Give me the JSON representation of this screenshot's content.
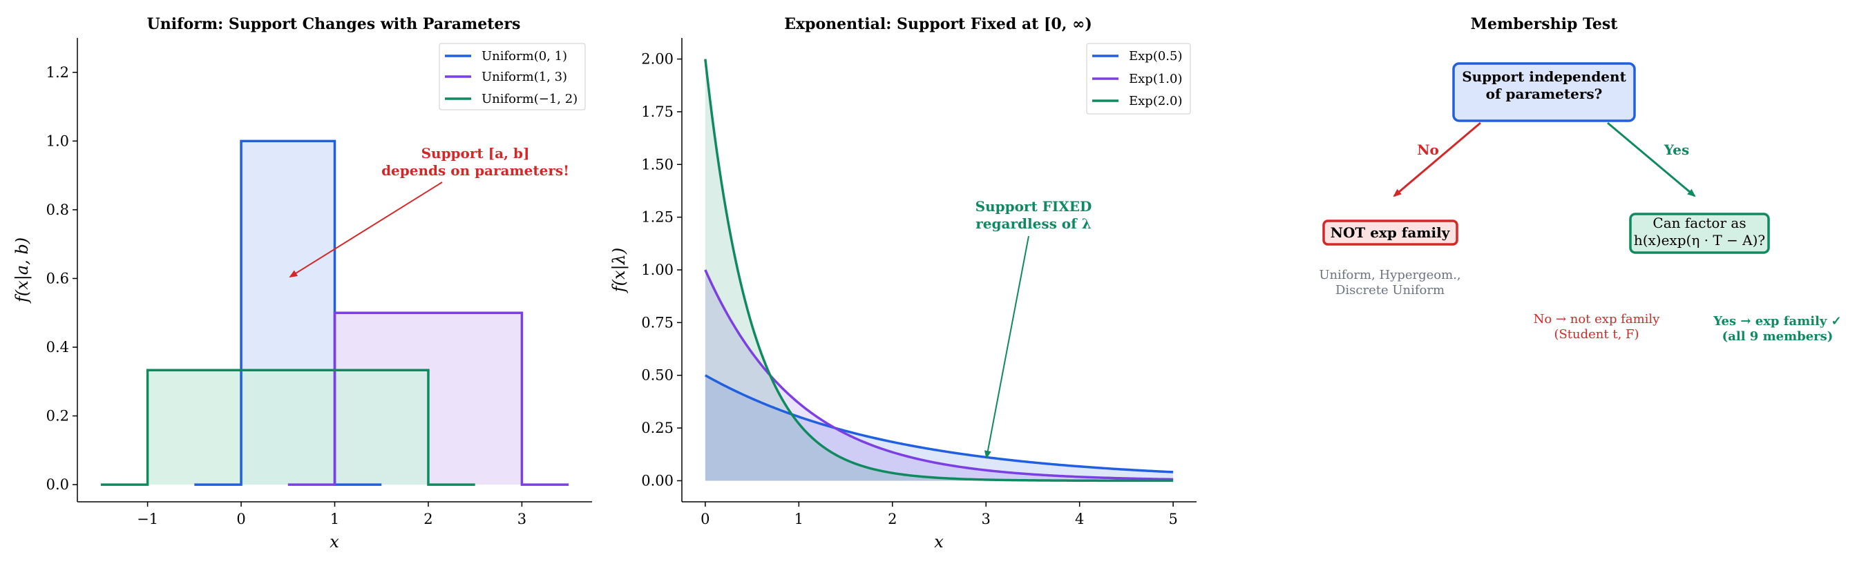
{
  "colors": {
    "blue": "#1f5fe0",
    "purple": "#7b3fe4",
    "green": "#0f8a5f",
    "red": "#d62728",
    "gray": "#6b7280",
    "blue_fill": "#dbe5fb",
    "purple_fill": "#e9def9",
    "green_fill": "#d4efe4",
    "red_fill": "#fde2e2"
  },
  "chart_data": [
    {
      "type": "line",
      "title": "Uniform: Support Changes with Parameters",
      "xlabel": "x",
      "ylabel": "f(x|a, b)",
      "xlim": [
        -1.75,
        3.75
      ],
      "ylim": [
        -0.05,
        1.3
      ],
      "xticks": [
        -1,
        0,
        1,
        2,
        3
      ],
      "yticks": [
        0.0,
        0.2,
        0.4,
        0.6,
        0.8,
        1.0,
        1.2
      ],
      "xtick_labels": [
        "−1",
        "0",
        "1",
        "2",
        "3"
      ],
      "ytick_labels": [
        "0.0",
        "0.2",
        "0.4",
        "0.6",
        "0.8",
        "1.0",
        "1.2"
      ],
      "legend_position": "top-right",
      "series": [
        {
          "name": "Uniform(0, 1)",
          "color_key": "blue",
          "x": [
            -0.5,
            0,
            0,
            1,
            1,
            1.5
          ],
          "y": [
            0,
            0,
            1.0,
            1.0,
            0,
            0
          ]
        },
        {
          "name": "Uniform(1, 3)",
          "color_key": "purple",
          "x": [
            0.5,
            1,
            1,
            3,
            3,
            3.5
          ],
          "y": [
            0,
            0,
            0.5,
            0.5,
            0,
            0
          ]
        },
        {
          "name": "Uniform(−1, 2)",
          "color_key": "green",
          "x": [
            -1.5,
            -1,
            -1,
            2,
            2,
            2.5
          ],
          "y": [
            0,
            0,
            0.3333,
            0.3333,
            0,
            0
          ]
        }
      ],
      "annotation": {
        "line1": "Support [a, b]",
        "line2": "depends on parameters!",
        "arrow_to": [
          0.5,
          0.6
        ],
        "text_at": [
          2.5,
          0.93
        ]
      }
    },
    {
      "type": "line",
      "title": "Exponential: Support Fixed at [0, ∞)",
      "xlabel": "x",
      "ylabel": "f(x|λ)",
      "xlim": [
        -0.25,
        5.25
      ],
      "ylim": [
        -0.1,
        2.1
      ],
      "xticks": [
        0,
        1,
        2,
        3,
        4,
        5
      ],
      "yticks": [
        0.0,
        0.25,
        0.5,
        0.75,
        1.0,
        1.25,
        1.5,
        1.75,
        2.0
      ],
      "xtick_labels": [
        "0",
        "1",
        "2",
        "3",
        "4",
        "5"
      ],
      "ytick_labels": [
        "0.00",
        "0.25",
        "0.50",
        "0.75",
        "1.00",
        "1.25",
        "1.50",
        "1.75",
        "2.00"
      ],
      "legend_position": "top-right",
      "series": [
        {
          "name": "Exp(0.5)",
          "color_key": "blue",
          "rate": 0.5
        },
        {
          "name": "Exp(1.0)",
          "color_key": "purple",
          "rate": 1.0
        },
        {
          "name": "Exp(2.0)",
          "color_key": "green",
          "rate": 2.0
        }
      ],
      "x_range": [
        0,
        5
      ],
      "annotation": {
        "line1": "Support FIXED",
        "line2": "regardless of λ",
        "arrow_to": [
          3.0,
          0.11
        ],
        "text_at": [
          3.5,
          1.22
        ]
      }
    }
  ],
  "diagram": {
    "title": "Membership Test",
    "root": "Support independent\nof parameters?",
    "no_label": "No",
    "yes_label": "Yes",
    "not_exp": "NOT exp family",
    "not_exp_examples": "Uniform, Hypergeom.,\nDiscrete Uniform",
    "factor_question": "Can factor as\nh(x)exp(η · T − A)?",
    "no_result": "No → not exp family\n(Student t, F)",
    "yes_result": "Yes → exp family ✓\n(all 9 members)"
  }
}
